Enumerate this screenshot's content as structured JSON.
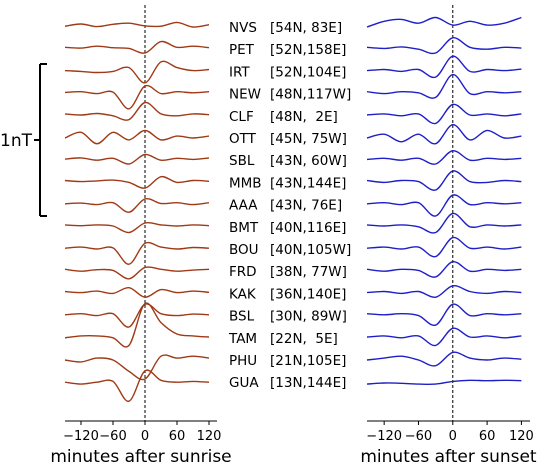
{
  "chart_data": [
    {
      "type": "line",
      "xlabel": "minutes after sunrise",
      "xlim": [
        -150,
        135
      ],
      "xticks": [
        -120,
        -60,
        0,
        60,
        120
      ],
      "xtick_labels": [
        "−120",
        "−60",
        "0",
        "60",
        "120"
      ],
      "reference_line_x": 0,
      "series_color": "#a03a16",
      "series": [
        {
          "name": "NVS",
          "x": [
            -150,
            -120,
            -90,
            -60,
            -30,
            0,
            30,
            60,
            90,
            120
          ],
          "y": [
            0.02,
            0.08,
            0.01,
            0.07,
            0.1,
            0.03,
            0.02,
            0.12,
            0.0,
            0.06
          ]
        },
        {
          "name": "PET",
          "x": [
            -150,
            -120,
            -90,
            -60,
            -30,
            0,
            30,
            60,
            90,
            120
          ],
          "y": [
            0.05,
            0.03,
            0.08,
            0.04,
            0.02,
            -0.1,
            0.2,
            0.05,
            0.08,
            0.04
          ]
        },
        {
          "name": "IRT",
          "x": [
            -150,
            -120,
            -90,
            -60,
            -30,
            0,
            30,
            60,
            90,
            120
          ],
          "y": [
            0.02,
            0.0,
            -0.03,
            0.0,
            0.1,
            -0.3,
            0.25,
            0.1,
            0.02,
            0.05
          ]
        },
        {
          "name": "NEW",
          "x": [
            -150,
            -120,
            -90,
            -60,
            -30,
            0,
            30,
            60,
            90,
            120
          ],
          "y": [
            0.03,
            0.05,
            0.0,
            0.04,
            -0.4,
            0.2,
            0.0,
            0.05,
            0.02,
            0.05
          ]
        },
        {
          "name": "CLF",
          "x": [
            -150,
            -120,
            -90,
            -60,
            -30,
            0,
            30,
            60,
            90,
            120
          ],
          "y": [
            0.05,
            0.02,
            0.06,
            0.0,
            -0.1,
            0.35,
            0.05,
            0.0,
            0.05,
            0.03
          ]
        },
        {
          "name": "OTT",
          "x": [
            -150,
            -120,
            -90,
            -60,
            -30,
            0,
            30,
            60,
            90,
            120
          ],
          "y": [
            0.0,
            0.15,
            -0.15,
            0.15,
            -0.05,
            0.2,
            -0.05,
            0.05,
            0.0,
            0.05
          ]
        },
        {
          "name": "SBL",
          "x": [
            -150,
            -120,
            -90,
            -60,
            -30,
            0,
            30,
            60,
            90,
            120
          ],
          "y": [
            0.03,
            0.06,
            0.0,
            0.05,
            -0.1,
            0.15,
            0.0,
            0.05,
            0.02,
            0.06
          ]
        },
        {
          "name": "MMB",
          "x": [
            -150,
            -120,
            -90,
            -60,
            -30,
            0,
            30,
            60,
            90,
            120
          ],
          "y": [
            0.05,
            0.02,
            0.04,
            0.06,
            0.0,
            -0.15,
            0.15,
            0.0,
            0.05,
            0.03
          ]
        },
        {
          "name": "AAA",
          "x": [
            -150,
            -120,
            -90,
            -60,
            -30,
            0,
            30,
            60,
            90,
            120
          ],
          "y": [
            0.02,
            0.04,
            0.0,
            0.05,
            -0.2,
            0.15,
            0.03,
            0.05,
            0.0,
            0.05
          ]
        },
        {
          "name": "BMT",
          "x": [
            -150,
            -120,
            -90,
            -60,
            -30,
            0,
            30,
            60,
            90,
            120
          ],
          "y": [
            0.05,
            0.03,
            0.05,
            0.02,
            -0.15,
            0.1,
            0.05,
            0.02,
            0.05,
            0.03
          ]
        },
        {
          "name": "BOU",
          "x": [
            -150,
            -120,
            -90,
            -60,
            -30,
            0,
            30,
            60,
            90,
            120
          ],
          "y": [
            0.02,
            0.05,
            0.0,
            0.03,
            -0.4,
            0.15,
            0.05,
            0.0,
            0.04,
            0.02
          ]
        },
        {
          "name": "FRD",
          "x": [
            -150,
            -120,
            -90,
            -60,
            -30,
            0,
            30,
            60,
            90,
            120
          ],
          "y": [
            0.05,
            0.0,
            0.04,
            0.02,
            -0.2,
            0.1,
            0.05,
            0.0,
            0.03,
            0.05
          ]
        },
        {
          "name": "KAK",
          "x": [
            -150,
            -120,
            -90,
            -60,
            -30,
            0,
            30,
            60,
            90,
            120
          ],
          "y": [
            0.05,
            0.02,
            0.06,
            0.0,
            0.15,
            -0.1,
            0.1,
            0.02,
            0.06,
            0.03
          ]
        },
        {
          "name": "BSL",
          "x": [
            -150,
            -120,
            -90,
            -60,
            -30,
            0,
            30,
            60,
            90,
            120
          ],
          "y": [
            0.02,
            0.05,
            0.0,
            0.05,
            -0.3,
            0.3,
            0.05,
            0.0,
            0.04,
            0.02
          ]
        },
        {
          "name": "TAM",
          "x": [
            -150,
            -120,
            -90,
            -60,
            -30,
            0,
            30,
            60,
            90,
            120
          ],
          "y": [
            0.0,
            0.05,
            0.05,
            0.0,
            -0.2,
            0.9,
            0.4,
            0.1,
            0.05,
            0.02
          ]
        },
        {
          "name": "PHU",
          "x": [
            -150,
            -120,
            -90,
            -60,
            -30,
            0,
            30,
            60,
            90,
            120
          ],
          "y": [
            0.0,
            -0.05,
            0.05,
            0.0,
            -0.3,
            -0.5,
            0.1,
            0.05,
            0.1,
            0.05
          ]
        },
        {
          "name": "GUA",
          "x": [
            -150,
            -120,
            -90,
            -60,
            -30,
            0,
            30,
            60,
            90,
            120
          ],
          "y": [
            0.0,
            -0.05,
            0.0,
            0.02,
            -0.5,
            0.3,
            0.05,
            0.0,
            0.02,
            0.0
          ]
        }
      ]
    },
    {
      "type": "line",
      "xlabel": "minutes after sunset",
      "xlim": [
        -150,
        135
      ],
      "xticks": [
        -120,
        -60,
        0,
        60,
        120
      ],
      "xtick_labels": [
        "−120",
        "−60",
        "0",
        "60",
        "120"
      ],
      "reference_line_x": 0,
      "series_color": "#1f1fc8",
      "series": [
        {
          "name": "NVS",
          "x": [
            -150,
            -120,
            -90,
            -60,
            -30,
            0,
            30,
            60,
            90,
            120
          ],
          "y": [
            0.0,
            0.15,
            0.2,
            0.1,
            0.25,
            0.05,
            0.15,
            0.05,
            0.1,
            0.25
          ]
        },
        {
          "name": "PET",
          "x": [
            -150,
            -120,
            -90,
            -60,
            -30,
            0,
            30,
            60,
            90,
            120
          ],
          "y": [
            0.05,
            0.02,
            0.06,
            0.0,
            -0.1,
            0.3,
            0.05,
            0.0,
            0.05,
            0.03
          ]
        },
        {
          "name": "IRT",
          "x": [
            -150,
            -120,
            -90,
            -60,
            -30,
            0,
            30,
            60,
            90,
            120
          ],
          "y": [
            0.02,
            0.05,
            0.0,
            0.05,
            -0.15,
            0.4,
            0.0,
            0.05,
            0.02,
            0.06
          ]
        },
        {
          "name": "NEW",
          "x": [
            -150,
            -120,
            -90,
            -60,
            -30,
            0,
            30,
            60,
            90,
            120
          ],
          "y": [
            0.05,
            0.0,
            0.05,
            0.02,
            -0.1,
            0.5,
            0.0,
            0.05,
            0.02,
            0.05
          ]
        },
        {
          "name": "CLF",
          "x": [
            -150,
            -120,
            -90,
            -60,
            -30,
            0,
            30,
            60,
            90,
            120
          ],
          "y": [
            0.02,
            0.05,
            0.0,
            0.05,
            -0.2,
            0.3,
            0.02,
            0.05,
            0.0,
            0.05
          ]
        },
        {
          "name": "OTT",
          "x": [
            -150,
            -120,
            -90,
            -60,
            -30,
            0,
            30,
            60,
            90,
            120
          ],
          "y": [
            0.0,
            0.1,
            -0.1,
            0.1,
            -0.15,
            0.35,
            -0.05,
            0.2,
            0.0,
            0.05
          ]
        },
        {
          "name": "SBL",
          "x": [
            -150,
            -120,
            -90,
            -60,
            -30,
            0,
            30,
            60,
            90,
            120
          ],
          "y": [
            0.02,
            0.05,
            0.0,
            0.05,
            -0.1,
            0.25,
            0.0,
            0.05,
            0.02,
            0.05
          ]
        },
        {
          "name": "MMB",
          "x": [
            -150,
            -120,
            -90,
            -60,
            -30,
            0,
            30,
            60,
            90,
            120
          ],
          "y": [
            0.05,
            0.0,
            0.05,
            0.02,
            -0.2,
            0.3,
            0.02,
            0.0,
            0.05,
            0.02
          ]
        },
        {
          "name": "AAA",
          "x": [
            -150,
            -120,
            -90,
            -60,
            -30,
            0,
            30,
            60,
            90,
            120
          ],
          "y": [
            0.02,
            0.05,
            0.0,
            0.05,
            -0.3,
            0.25,
            0.0,
            0.05,
            0.02,
            0.05
          ]
        },
        {
          "name": "BMT",
          "x": [
            -150,
            -120,
            -90,
            -60,
            -30,
            0,
            30,
            60,
            90,
            120
          ],
          "y": [
            0.05,
            0.02,
            0.05,
            0.0,
            -0.15,
            0.35,
            0.0,
            0.05,
            0.02,
            0.05
          ]
        },
        {
          "name": "BOU",
          "x": [
            -150,
            -120,
            -90,
            -60,
            -30,
            0,
            30,
            60,
            90,
            120
          ],
          "y": [
            0.02,
            0.05,
            0.0,
            0.05,
            -0.2,
            0.3,
            0.02,
            0.05,
            0.0,
            0.05
          ]
        },
        {
          "name": "FRD",
          "x": [
            -150,
            -120,
            -90,
            -60,
            -30,
            0,
            30,
            60,
            90,
            120
          ],
          "y": [
            0.05,
            0.0,
            0.05,
            0.02,
            -0.15,
            0.25,
            0.0,
            0.05,
            0.02,
            0.05
          ]
        },
        {
          "name": "KAK",
          "x": [
            -150,
            -120,
            -90,
            -60,
            -30,
            0,
            30,
            60,
            90,
            120
          ],
          "y": [
            0.02,
            0.05,
            0.0,
            0.05,
            -0.1,
            0.2,
            0.05,
            0.0,
            0.05,
            0.02
          ]
        },
        {
          "name": "BSL",
          "x": [
            -150,
            -120,
            -90,
            -60,
            -30,
            0,
            30,
            60,
            90,
            120
          ],
          "y": [
            0.05,
            0.02,
            0.05,
            0.0,
            -0.25,
            0.3,
            0.0,
            0.05,
            0.02,
            0.05
          ]
        },
        {
          "name": "TAM",
          "x": [
            -150,
            -120,
            -90,
            -60,
            -30,
            0,
            30,
            60,
            90,
            120
          ],
          "y": [
            0.02,
            0.05,
            0.0,
            0.05,
            -0.2,
            0.25,
            0.02,
            0.05,
            0.0,
            0.05
          ]
        },
        {
          "name": "PHU",
          "x": [
            -150,
            -120,
            -90,
            -60,
            -30,
            0,
            30,
            60,
            90,
            120
          ],
          "y": [
            0.0,
            0.05,
            0.1,
            0.0,
            -0.15,
            0.2,
            0.05,
            0.0,
            0.05,
            0.02
          ]
        },
        {
          "name": "GUA",
          "x": [
            -150,
            -120,
            -90,
            -60,
            -30,
            0,
            30,
            60,
            90,
            120
          ],
          "y": [
            -0.05,
            -0.02,
            -0.03,
            -0.05,
            -0.05,
            0.02,
            0.05,
            0.04,
            0.05,
            0.04
          ]
        }
      ]
    }
  ],
  "stations": [
    {
      "code": "NVS",
      "coords": "[54N, 83E]"
    },
    {
      "code": "PET",
      "coords": "[52N,158E]"
    },
    {
      "code": "IRT",
      "coords": "[52N,104E]"
    },
    {
      "code": "NEW",
      "coords": "[48N,117W]"
    },
    {
      "code": "CLF",
      "coords": "[48N,  2E]"
    },
    {
      "code": "OTT",
      "coords": "[45N, 75W]"
    },
    {
      "code": "SBL",
      "coords": "[43N, 60W]"
    },
    {
      "code": "MMB",
      "coords": "[43N,144E]"
    },
    {
      "code": "AAA",
      "coords": "[43N, 76E]"
    },
    {
      "code": "BMT",
      "coords": "[40N,116E]"
    },
    {
      "code": "BOU",
      "coords": "[40N,105W]"
    },
    {
      "code": "FRD",
      "coords": "[38N, 77W]"
    },
    {
      "code": "KAK",
      "coords": "[36N,140E]"
    },
    {
      "code": "BSL",
      "coords": "[30N, 89W]"
    },
    {
      "code": "TAM",
      "coords": "[22N,  5E]"
    },
    {
      "code": "PHU",
      "coords": "[21N,105E]"
    },
    {
      "code": "GUA",
      "coords": "[13N,144E]"
    }
  ],
  "scale_bar": {
    "label": "1nT",
    "value_nT": 1
  }
}
